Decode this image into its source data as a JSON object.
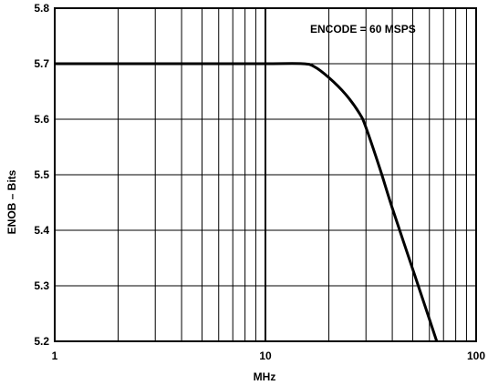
{
  "chart_data": {
    "type": "line",
    "title": "",
    "annotation": "ENCODE = 60 MSPS",
    "xlabel": "MHz",
    "ylabel": "ENOB – Bits",
    "x_scale": "log",
    "xlim": [
      1,
      100
    ],
    "ylim": [
      5.2,
      5.8
    ],
    "x_tick_labels": [
      "1",
      "10",
      "100"
    ],
    "x_ticks": [
      1,
      10,
      100
    ],
    "y_ticks": [
      5.2,
      5.3,
      5.4,
      5.5,
      5.6,
      5.7,
      5.8
    ],
    "y_tick_labels": [
      "5.2",
      "5.3",
      "5.4",
      "5.5",
      "5.6",
      "5.7",
      "5.8"
    ],
    "grid": true,
    "series": [
      {
        "x": [
          1,
          5,
          10,
          15,
          17,
          20,
          24,
          28,
          30,
          35,
          40,
          50,
          60,
          65
        ],
        "y": [
          5.7,
          5.7,
          5.7,
          5.7,
          5.695,
          5.675,
          5.645,
          5.61,
          5.585,
          5.51,
          5.44,
          5.33,
          5.24,
          5.2
        ]
      }
    ]
  }
}
